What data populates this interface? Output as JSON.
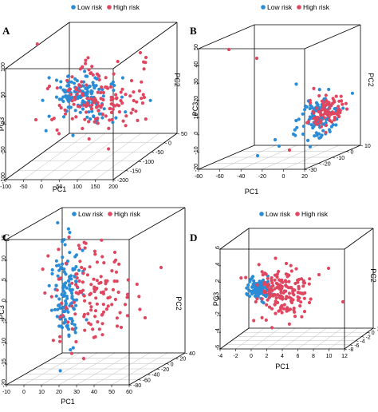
{
  "colors": {
    "low": "#2b8cd6",
    "high": "#e0465f",
    "box": "#000000",
    "grid": "#bdbdbd"
  },
  "chart_data": [
    {
      "panel": "A",
      "type": "scatter",
      "title": "",
      "legend": [
        {
          "name": "Low risk",
          "color": "#2b8cd6"
        },
        {
          "name": "High risk",
          "color": "#e0465f"
        }
      ],
      "legend_position": "top",
      "axes": {
        "x": {
          "label": "PC1",
          "ticks": [
            "-100",
            "-50",
            "0",
            "50",
            "100",
            "150",
            "200"
          ]
        },
        "y": {
          "label": "PC2",
          "ticks": [
            "-200",
            "-150",
            "-100",
            "-50",
            "0",
            "50"
          ]
        },
        "z": {
          "label": "PC3",
          "ticks": [
            "-100",
            "-50",
            "0",
            "50",
            "100"
          ]
        }
      },
      "grid": true
    },
    {
      "panel": "B",
      "type": "scatter",
      "title": "",
      "legend": [
        {
          "name": "Low risk",
          "color": "#2b8cd6"
        },
        {
          "name": "High risk",
          "color": "#e0465f"
        }
      ],
      "legend_position": "top",
      "axes": {
        "x": {
          "label": "PC1",
          "ticks": [
            "-80",
            "-60",
            "-40",
            "-20",
            "0",
            "20"
          ]
        },
        "y": {
          "label": "PC2",
          "ticks": [
            "-30",
            "-20",
            "-10",
            "0",
            "10"
          ]
        },
        "z": {
          "label": "PC3",
          "ticks": [
            "-20",
            "-10",
            "0",
            "10",
            "20",
            "30",
            "40",
            "50"
          ]
        }
      },
      "grid": true
    },
    {
      "panel": "C",
      "type": "scatter",
      "title": "",
      "legend": [
        {
          "name": "Low risk",
          "color": "#2b8cd6"
        },
        {
          "name": "High risk",
          "color": "#e0465f"
        }
      ],
      "legend_position": "top",
      "axes": {
        "x": {
          "label": "PC1",
          "ticks": [
            "-10",
            "0",
            "10",
            "20",
            "30",
            "40",
            "50",
            "60"
          ]
        },
        "y": {
          "label": "PC2",
          "ticks": [
            "-80",
            "-60",
            "-40",
            "-20",
            "0",
            "20",
            "40"
          ]
        },
        "z": {
          "label": "PC3",
          "ticks": [
            "-20",
            "-15",
            "-10",
            "-5",
            "0",
            "5",
            "10",
            "15"
          ]
        }
      },
      "grid": true
    },
    {
      "panel": "D",
      "type": "scatter",
      "title": "",
      "legend": [
        {
          "name": "Low risk",
          "color": "#2b8cd6"
        },
        {
          "name": "High risk",
          "color": "#e0465f"
        }
      ],
      "legend_position": "top",
      "axes": {
        "x": {
          "label": "PC1",
          "ticks": [
            "-4",
            "-2",
            "0",
            "2",
            "4",
            "6",
            "8",
            "10",
            "12"
          ]
        },
        "y": {
          "label": "PC2",
          "ticks": [
            "-8",
            "-6",
            "-4",
            "-2",
            "0",
            "2"
          ]
        },
        "z": {
          "label": "PC3",
          "ticks": [
            "-6",
            "-4",
            "-2",
            "0",
            "2",
            "4",
            "6"
          ]
        }
      },
      "grid": true
    }
  ]
}
